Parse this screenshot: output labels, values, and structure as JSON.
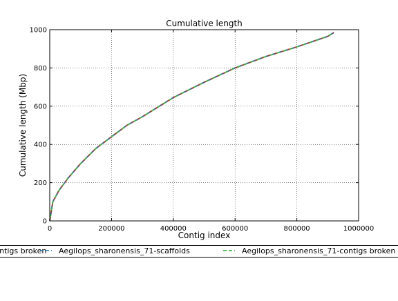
{
  "chart_data": {
    "type": "line",
    "title": "Cumulative length",
    "xlabel": "Contig index",
    "ylabel": "Cumulative length (Mbp)",
    "xlim": [
      0,
      1000000
    ],
    "ylim": [
      0,
      1000
    ],
    "x_ticks": [
      0,
      200000,
      400000,
      600000,
      800000,
      1000000
    ],
    "x_tick_labels": [
      "0",
      "200000",
      "400000",
      "600000",
      "800000",
      "1000000"
    ],
    "y_ticks": [
      0,
      200,
      400,
      600,
      800,
      1000
    ],
    "y_tick_labels": [
      "0",
      "200",
      "400",
      "600",
      "800",
      "1000"
    ],
    "grid": true,
    "legend_position": "bottom",
    "series": [
      {
        "name": "Aegilops_sharonensis_71-contigs broken",
        "color": "#d62728",
        "linestyle": "dashed",
        "x": [
          0,
          10000,
          30000,
          60000,
          100000,
          150000,
          200000,
          250000,
          300000,
          400000,
          500000,
          600000,
          700000,
          800000,
          900000,
          920000
        ],
        "y": [
          0,
          100,
          160,
          225,
          300,
          380,
          440,
          500,
          545,
          645,
          725,
          800,
          860,
          910,
          965,
          985
        ]
      },
      {
        "name": "Aegilops_sharonensis_71-scaffolds",
        "color": "#1f77b4",
        "linestyle": "dashed",
        "x": [
          0,
          10000,
          30000,
          60000,
          100000,
          150000,
          200000,
          250000,
          300000,
          400000,
          500000,
          600000,
          700000,
          800000,
          900000,
          920000
        ],
        "y": [
          0,
          100,
          160,
          225,
          300,
          380,
          440,
          500,
          545,
          645,
          725,
          800,
          860,
          910,
          965,
          985
        ]
      },
      {
        "name": "Aegilops_sharonensis_71-contigs broken",
        "color": "#2ca02c",
        "linestyle": "dashed",
        "x": [
          0,
          10000,
          30000,
          60000,
          100000,
          150000,
          200000,
          250000,
          300000,
          400000,
          500000,
          600000,
          700000,
          800000,
          900000,
          920000
        ],
        "y": [
          0,
          100,
          160,
          225,
          300,
          380,
          440,
          500,
          545,
          645,
          725,
          800,
          860,
          910,
          965,
          985
        ]
      }
    ]
  }
}
